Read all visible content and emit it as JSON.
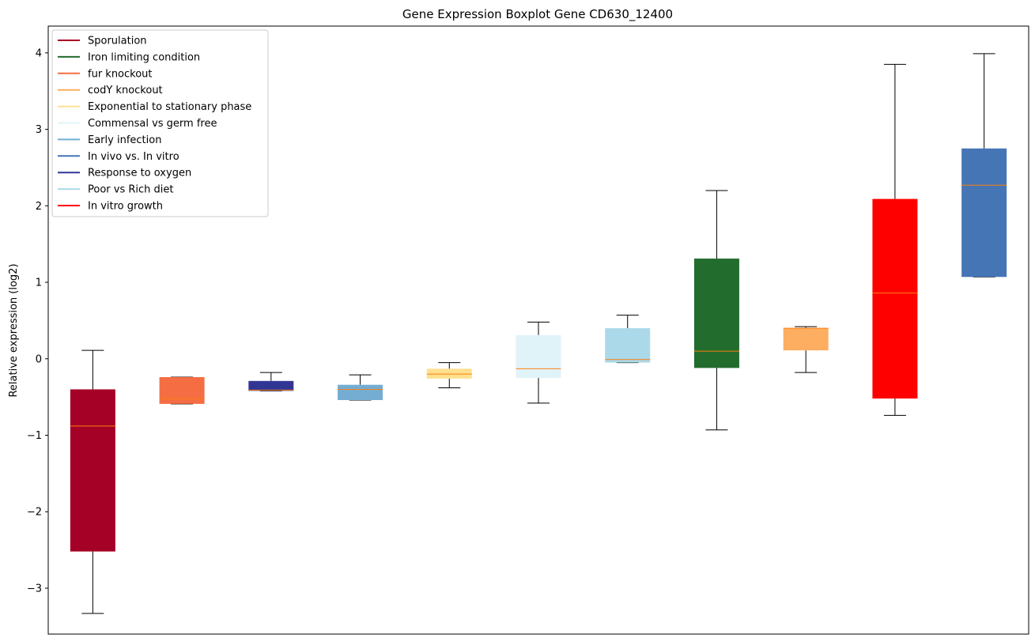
{
  "chart_data": {
    "type": "boxplot",
    "title": "Gene Expression Boxplot Gene CD630_12400",
    "xlabel": "",
    "ylabel": "Relative expression (log2)",
    "ylim": [
      -3.6,
      4.35
    ],
    "yticks": [
      -3,
      -2,
      -1,
      0,
      1,
      2,
      3,
      4
    ],
    "ytick_labels": [
      "−3",
      "−2",
      "−1",
      "0",
      "1",
      "2",
      "3",
      "4"
    ],
    "grid": false,
    "legend_position": "top-left",
    "median_color": "#ff7f0e",
    "legend": [
      {
        "label": "Sporulation",
        "color": "#a50026"
      },
      {
        "label": "Iron limiting condition",
        "color": "#226c2e"
      },
      {
        "label": "fur knockout",
        "color": "#f46d43"
      },
      {
        "label": "codY knockout",
        "color": "#fdae61"
      },
      {
        "label": "Exponential to stationary phase",
        "color": "#fee090"
      },
      {
        "label": "Commensal vs germ free",
        "color": "#e0f3f8"
      },
      {
        "label": "Early infection",
        "color": "#74add1"
      },
      {
        "label": "In vivo vs. In vitro",
        "color": "#4575b4"
      },
      {
        "label": "Response to oxygen",
        "color": "#313695"
      },
      {
        "label": "Poor vs Rich diet",
        "color": "#abd9e9"
      },
      {
        "label": "In vitro growth",
        "color": "#ff0000"
      }
    ],
    "boxes": [
      {
        "group": "Sporulation",
        "color": "#a50026",
        "whislo": -3.33,
        "q1": -2.52,
        "median": -0.88,
        "q3": -0.4,
        "whishi": 0.11
      },
      {
        "group": "fur knockout",
        "color": "#f46d43",
        "whislo": -0.59,
        "q1": -0.59,
        "median": -0.52,
        "q3": -0.24,
        "whishi": -0.24
      },
      {
        "group": "Response to oxygen",
        "color": "#313695",
        "whislo": -0.42,
        "q1": -0.42,
        "median": -0.41,
        "q3": -0.29,
        "whishi": -0.18
      },
      {
        "group": "Early infection",
        "color": "#74add1",
        "whislo": -0.54,
        "q1": -0.54,
        "median": -0.4,
        "q3": -0.34,
        "whishi": -0.21
      },
      {
        "group": "Exponential to stationary phase",
        "color": "#fee090",
        "whislo": -0.38,
        "q1": -0.26,
        "median": -0.2,
        "q3": -0.13,
        "whishi": -0.05
      },
      {
        "group": "Commensal vs germ free",
        "color": "#e0f3f8",
        "whislo": -0.58,
        "q1": -0.25,
        "median": -0.13,
        "q3": 0.31,
        "whishi": 0.48
      },
      {
        "group": "Poor vs Rich diet",
        "color": "#abd9e9",
        "whislo": -0.05,
        "q1": -0.05,
        "median": -0.01,
        "q3": 0.4,
        "whishi": 0.57
      },
      {
        "group": "Iron limiting condition",
        "color": "#226c2e",
        "whislo": -0.93,
        "q1": -0.12,
        "median": 0.1,
        "q3": 1.31,
        "whishi": 2.2
      },
      {
        "group": "codY knockout",
        "color": "#fdae61",
        "whislo": -0.18,
        "q1": 0.11,
        "median": 0.4,
        "q3": 0.4,
        "whishi": 0.42
      },
      {
        "group": "In vitro growth",
        "color": "#ff0000",
        "whislo": -0.74,
        "q1": -0.52,
        "median": 0.86,
        "q3": 2.09,
        "whishi": 3.85
      },
      {
        "group": "In vivo vs. In vitro",
        "color": "#4575b4",
        "whislo": 1.07,
        "q1": 1.07,
        "median": 2.27,
        "q3": 2.75,
        "whishi": 3.99
      }
    ]
  }
}
